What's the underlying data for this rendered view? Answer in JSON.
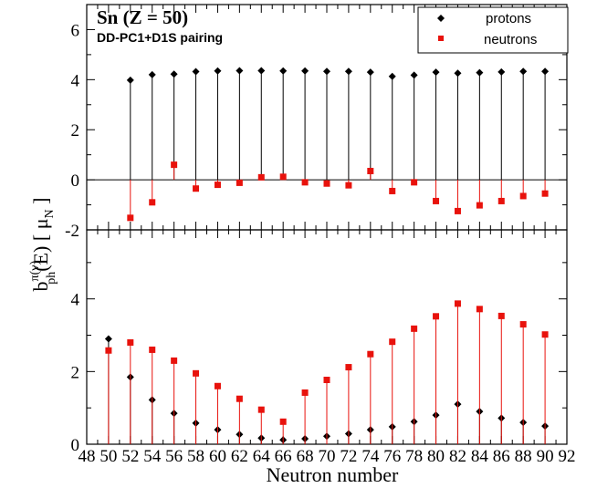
{
  "chart_data": {
    "type": "scatter",
    "title": "Sn (Z = 50)",
    "subtitle": "DD-PC1+D1S pairing",
    "xlabel": "Neutron number",
    "ylabel": {
      "base": "b",
      "sup": "π(ν)",
      "sub": "ph",
      "rest": "(E)  [ μ",
      "unit_sub": "N",
      "close": " ]"
    },
    "x": [
      50,
      52,
      54,
      56,
      58,
      60,
      62,
      64,
      66,
      68,
      70,
      72,
      74,
      76,
      78,
      80,
      82,
      84,
      86,
      88,
      90
    ],
    "x_ticks": [
      "48",
      "50",
      "52",
      "54",
      "56",
      "58",
      "60",
      "62",
      "64",
      "66",
      "68",
      "70",
      "72",
      "74",
      "76",
      "78",
      "80",
      "82",
      "84",
      "86",
      "88",
      "90",
      "92"
    ],
    "xlim": [
      48,
      92
    ],
    "legend": {
      "placement": "top-right",
      "entries": [
        {
          "name": "protons",
          "color": "#000000",
          "marker": "diamond"
        },
        {
          "name": "neutrons",
          "color": "#e8120c",
          "marker": "square"
        }
      ]
    },
    "panels": [
      {
        "name": "upper",
        "ylim": [
          -2,
          7
        ],
        "y_ticks": [
          "-2",
          "0",
          "2",
          "4",
          "6"
        ],
        "zero_line": true,
        "series": [
          {
            "name": "protons",
            "values": [
              null,
              3.98,
              4.2,
              4.22,
              4.32,
              4.35,
              4.36,
              4.36,
              4.35,
              4.35,
              4.33,
              4.33,
              4.3,
              4.13,
              4.18,
              4.3,
              4.26,
              4.28,
              4.31,
              4.33,
              4.33
            ]
          },
          {
            "name": "neutrons",
            "values": [
              null,
              -1.52,
              -0.9,
              0.6,
              -0.35,
              -0.2,
              -0.12,
              0.1,
              0.12,
              -0.1,
              -0.15,
              -0.22,
              0.35,
              -0.45,
              -0.1,
              -0.85,
              -1.25,
              -1.02,
              -0.85,
              -0.65,
              -0.55
            ]
          }
        ]
      },
      {
        "name": "lower",
        "ylim": [
          0,
          5.9
        ],
        "y_ticks": [
          "0",
          "2",
          "4"
        ],
        "series": [
          {
            "name": "protons",
            "values": [
              2.9,
              1.85,
              1.22,
              0.85,
              0.58,
              0.4,
              0.27,
              0.17,
              0.12,
              0.15,
              0.22,
              0.29,
              0.4,
              0.48,
              0.62,
              0.8,
              1.1,
              0.9,
              0.72,
              0.6,
              0.5
            ]
          },
          {
            "name": "neutrons",
            "values": [
              2.58,
              2.8,
              2.6,
              2.3,
              1.95,
              1.6,
              1.25,
              0.95,
              0.62,
              1.42,
              1.77,
              2.12,
              2.48,
              2.82,
              3.18,
              3.52,
              3.87,
              3.72,
              3.53,
              3.3,
              3.02
            ]
          }
        ]
      }
    ]
  }
}
